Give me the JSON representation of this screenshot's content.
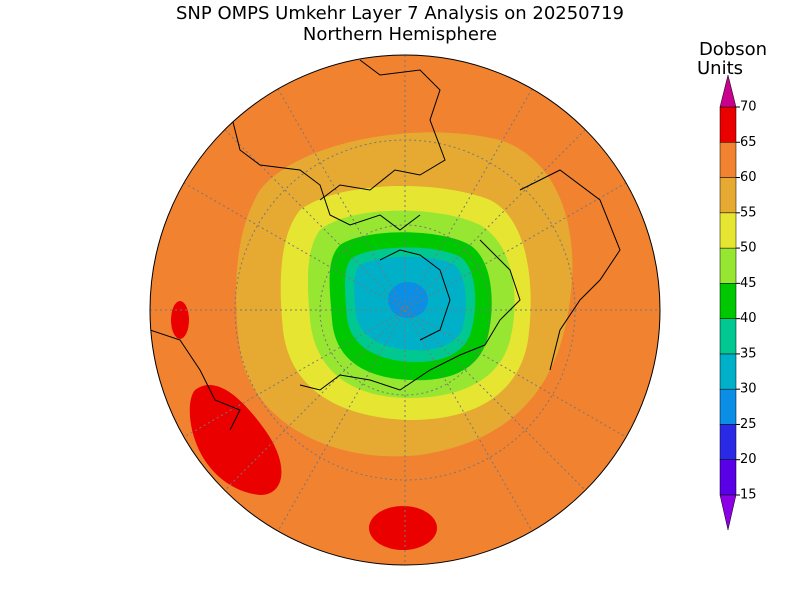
{
  "header": {
    "title": "SNP OMPS Umkehr Layer 7 Analysis on 20250719",
    "subtitle": "Northern Hemisphere"
  },
  "legend": {
    "label_lines": [
      "Dobson",
      "Units"
    ],
    "ticks": [
      15,
      20,
      25,
      30,
      35,
      40,
      45,
      50,
      55,
      60,
      65,
      70
    ],
    "colors": [
      "#5a00e6",
      "#2a2ae6",
      "#0a8ee6",
      "#00b0c8",
      "#00c890",
      "#00c800",
      "#96e632",
      "#e6e632",
      "#e6aa32",
      "#f08230",
      "#eb0000"
    ],
    "under_color": "#8c00e6",
    "over_color": "#c8008c"
  }
}
